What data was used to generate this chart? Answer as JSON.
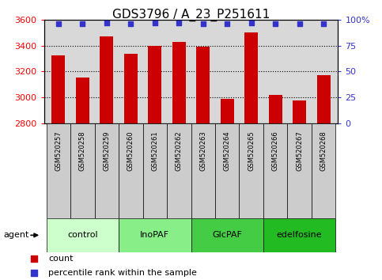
{
  "title": "GDS3796 / A_23_P251611",
  "samples": [
    "GSM520257",
    "GSM520258",
    "GSM520259",
    "GSM520260",
    "GSM520261",
    "GSM520262",
    "GSM520263",
    "GSM520264",
    "GSM520265",
    "GSM520266",
    "GSM520267",
    "GSM520268"
  ],
  "counts": [
    3325,
    3150,
    3470,
    3335,
    3400,
    3430,
    3390,
    2990,
    3500,
    3020,
    2975,
    3170
  ],
  "percentile_ranks": [
    96,
    96,
    97,
    96,
    97,
    97,
    96,
    96,
    97,
    96,
    96,
    96
  ],
  "ylim_left": [
    2800,
    3600
  ],
  "ylim_right": [
    0,
    100
  ],
  "yticks_left": [
    2800,
    3000,
    3200,
    3400,
    3600
  ],
  "yticks_right": [
    0,
    25,
    50,
    75,
    100
  ],
  "bar_color": "#cc0000",
  "dot_color": "#3333cc",
  "plot_bg": "#d8d8d8",
  "groups": [
    {
      "label": "control",
      "start": 0,
      "end": 3,
      "color": "#ccffcc"
    },
    {
      "label": "InoPAF",
      "start": 3,
      "end": 6,
      "color": "#88ee88"
    },
    {
      "label": "GlcPAF",
      "start": 6,
      "end": 9,
      "color": "#44cc44"
    },
    {
      "label": "edelfosine",
      "start": 9,
      "end": 12,
      "color": "#22bb22"
    }
  ],
  "agent_label": "agent",
  "legend_count_label": "count",
  "legend_pct_label": "percentile rank within the sample",
  "title_fontsize": 11,
  "tick_fontsize": 8,
  "sample_fontsize": 6,
  "group_fontsize": 8,
  "legend_fontsize": 8
}
